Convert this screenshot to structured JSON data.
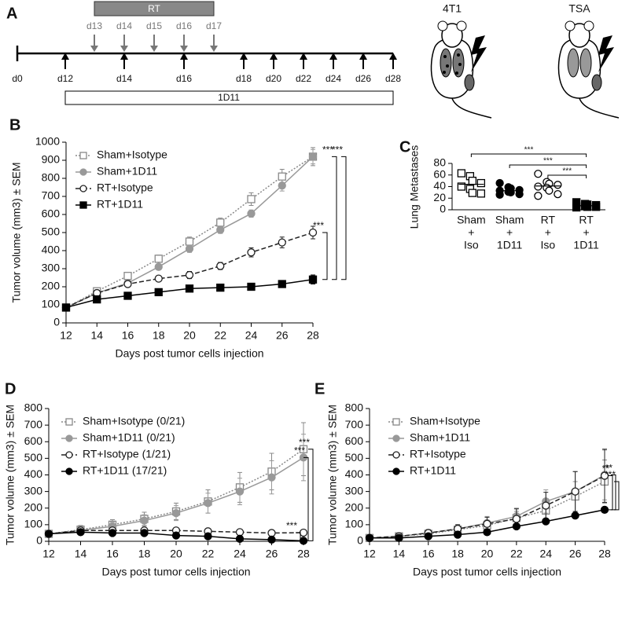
{
  "timeline": {
    "panel": "A",
    "rt_label": "RT",
    "rt_days": [
      "d13",
      "d14",
      "d15",
      "d16",
      "d17"
    ],
    "start": "d0",
    "treatment_days": [
      "d12",
      "d14",
      "d16",
      "d18",
      "d20",
      "d22",
      "d24",
      "d26",
      "d28"
    ],
    "antibody_label": "1D11",
    "models": [
      "4T1",
      "TSA"
    ]
  },
  "chart_data": [
    {
      "type": "line",
      "panel": "B",
      "xlabel": "Days post tumor cells injection",
      "ylabel": "Tumor volume (mm3) ± SEM",
      "x": [
        12,
        14,
        16,
        18,
        20,
        22,
        24,
        26,
        28
      ],
      "xlim": [
        12,
        28
      ],
      "xticks": [
        12,
        14,
        16,
        18,
        20,
        22,
        24,
        26,
        28
      ],
      "ylim": [
        0,
        1000
      ],
      "yticks": [
        0,
        100,
        200,
        300,
        400,
        500,
        600,
        700,
        800,
        900,
        1000
      ],
      "legend": "upper left",
      "series": [
        {
          "name": "Sham+Isotype",
          "color": "#888888",
          "marker": "square-open",
          "dash": "dotted",
          "values": [
            85,
            175,
            260,
            355,
            450,
            555,
            685,
            810,
            920
          ],
          "errors": [
            5,
            15,
            15,
            20,
            25,
            25,
            35,
            40,
            50
          ]
        },
        {
          "name": "Sham+1D11",
          "color": "#999999",
          "marker": "circle",
          "dash": "solid",
          "values": [
            85,
            165,
            220,
            310,
            410,
            515,
            605,
            760,
            920
          ],
          "errors": [
            5,
            15,
            15,
            15,
            20,
            20,
            20,
            30,
            40
          ]
        },
        {
          "name": "RT+Isotype",
          "color": "#222222",
          "marker": "circle-open",
          "dash": "dashed",
          "values": [
            85,
            165,
            215,
            245,
            265,
            315,
            390,
            445,
            500
          ],
          "errors": [
            5,
            15,
            15,
            15,
            20,
            20,
            25,
            30,
            35
          ]
        },
        {
          "name": "RT+1D11",
          "color": "#000000",
          "marker": "square",
          "dash": "solid",
          "values": [
            85,
            130,
            150,
            170,
            190,
            195,
            200,
            215,
            240
          ],
          "errors": [
            5,
            10,
            10,
            10,
            10,
            10,
            10,
            15,
            25
          ]
        }
      ],
      "annotations": [
        "***",
        "***",
        "***"
      ]
    },
    {
      "type": "strip",
      "panel": "C",
      "ylabel": "Lung Metastases",
      "ylim": [
        0,
        80
      ],
      "yticks": [
        0,
        20,
        40,
        60,
        80
      ],
      "categories": [
        [
          "Sham",
          "+",
          "Iso"
        ],
        [
          "Sham",
          "+",
          "1D11"
        ],
        [
          "RT",
          "+",
          "Iso"
        ],
        [
          "RT",
          "+",
          "1D11"
        ]
      ],
      "groups": [
        {
          "marker": "square-open",
          "color": "#000000",
          "values": [
            63,
            58,
            50,
            46,
            40,
            36,
            29,
            28
          ],
          "mean": 44
        },
        {
          "marker": "circle",
          "color": "#000000",
          "values": [
            46,
            39,
            37,
            34,
            33,
            31,
            30,
            27,
            26
          ],
          "mean": 33
        },
        {
          "marker": "circle-open",
          "color": "#000000",
          "values": [
            62,
            48,
            45,
            43,
            40,
            38,
            33,
            27,
            24
          ],
          "mean": 41
        },
        {
          "marker": "square",
          "color": "#000000",
          "values": [
            13,
            10,
            9,
            8,
            7,
            6,
            5,
            5,
            4
          ],
          "mean": 7
        }
      ],
      "annotations": [
        "***",
        "***",
        "***"
      ]
    },
    {
      "type": "line",
      "panel": "D",
      "xlabel": "Days post tumor cells injection",
      "ylabel": "Tumor volume (mm3) ± SEM",
      "x": [
        12,
        14,
        16,
        18,
        20,
        22,
        24,
        26,
        28
      ],
      "xlim": [
        12,
        28
      ],
      "xticks": [
        12,
        14,
        16,
        18,
        20,
        22,
        24,
        26,
        28
      ],
      "ylim": [
        0,
        800
      ],
      "yticks": [
        0,
        100,
        200,
        300,
        400,
        500,
        600,
        700,
        800
      ],
      "legend": "upper left",
      "series": [
        {
          "name": "Sham+Isotype (0/21)",
          "color": "#888888",
          "marker": "square-open",
          "dash": "dotted",
          "values": [
            45,
            70,
            100,
            135,
            180,
            240,
            325,
            420,
            555
          ],
          "errors": [
            5,
            25,
            30,
            40,
            50,
            70,
            90,
            110,
            160
          ]
        },
        {
          "name": "Sham+1D11 (0/21)",
          "color": "#999999",
          "marker": "circle",
          "dash": "solid",
          "values": [
            45,
            65,
            90,
            125,
            170,
            230,
            300,
            385,
            505
          ],
          "errors": [
            5,
            20,
            25,
            35,
            45,
            60,
            80,
            100,
            140
          ]
        },
        {
          "name": "RT+Isotype (1/21)",
          "color": "#222222",
          "marker": "circle-open",
          "dash": "dashed",
          "values": [
            45,
            65,
            65,
            65,
            65,
            60,
            55,
            50,
            52
          ],
          "errors": [
            5,
            20,
            15,
            15,
            10,
            10,
            10,
            10,
            10
          ]
        },
        {
          "name": "RT+1D11 (17/21)",
          "color": "#000000",
          "marker": "circle",
          "dash": "solid",
          "values": [
            45,
            55,
            50,
            50,
            35,
            30,
            15,
            10,
            3
          ],
          "errors": [
            5,
            15,
            10,
            10,
            10,
            10,
            10,
            5,
            5
          ]
        }
      ],
      "annotations": [
        "***",
        "***",
        "***"
      ]
    },
    {
      "type": "line",
      "panel": "E",
      "xlabel": "Days post tumor cells injection",
      "ylabel": "Tumor volume (mm3) ± SEM",
      "x": [
        12,
        14,
        16,
        18,
        20,
        22,
        24,
        26,
        28
      ],
      "xlim": [
        12,
        28
      ],
      "xticks": [
        12,
        14,
        16,
        18,
        20,
        22,
        24,
        26,
        28
      ],
      "ylim": [
        0,
        800
      ],
      "yticks": [
        0,
        100,
        200,
        300,
        400,
        500,
        600,
        700,
        800
      ],
      "legend": "upper left",
      "series": [
        {
          "name": "Sham+Isotype",
          "color": "#888888",
          "marker": "square-open",
          "dash": "dotted",
          "values": [
            20,
            30,
            45,
            70,
            95,
            140,
            185,
            270,
            360
          ],
          "errors": [
            5,
            10,
            15,
            20,
            30,
            40,
            60,
            90,
            130
          ]
        },
        {
          "name": "Sham+1D11",
          "color": "#999999",
          "marker": "circle",
          "dash": "solid",
          "values": [
            20,
            30,
            50,
            75,
            110,
            150,
            240,
            300,
            400
          ],
          "errors": [
            5,
            10,
            20,
            25,
            40,
            50,
            70,
            120,
            150
          ]
        },
        {
          "name": "RT+Isotype",
          "color": "#222222",
          "marker": "circle-open",
          "dash": "dashed",
          "values": [
            20,
            30,
            50,
            75,
            105,
            135,
            215,
            300,
            395
          ],
          "errors": [
            5,
            10,
            20,
            25,
            40,
            60,
            80,
            120,
            160
          ]
        },
        {
          "name": "RT+1D11",
          "color": "#000000",
          "marker": "circle",
          "dash": "solid",
          "values": [
            20,
            20,
            30,
            40,
            55,
            90,
            120,
            155,
            190
          ],
          "errors": [
            5,
            5,
            5,
            10,
            10,
            10,
            15,
            10,
            5
          ]
        }
      ],
      "annotations": [
        "***",
        "**",
        "**"
      ]
    }
  ]
}
